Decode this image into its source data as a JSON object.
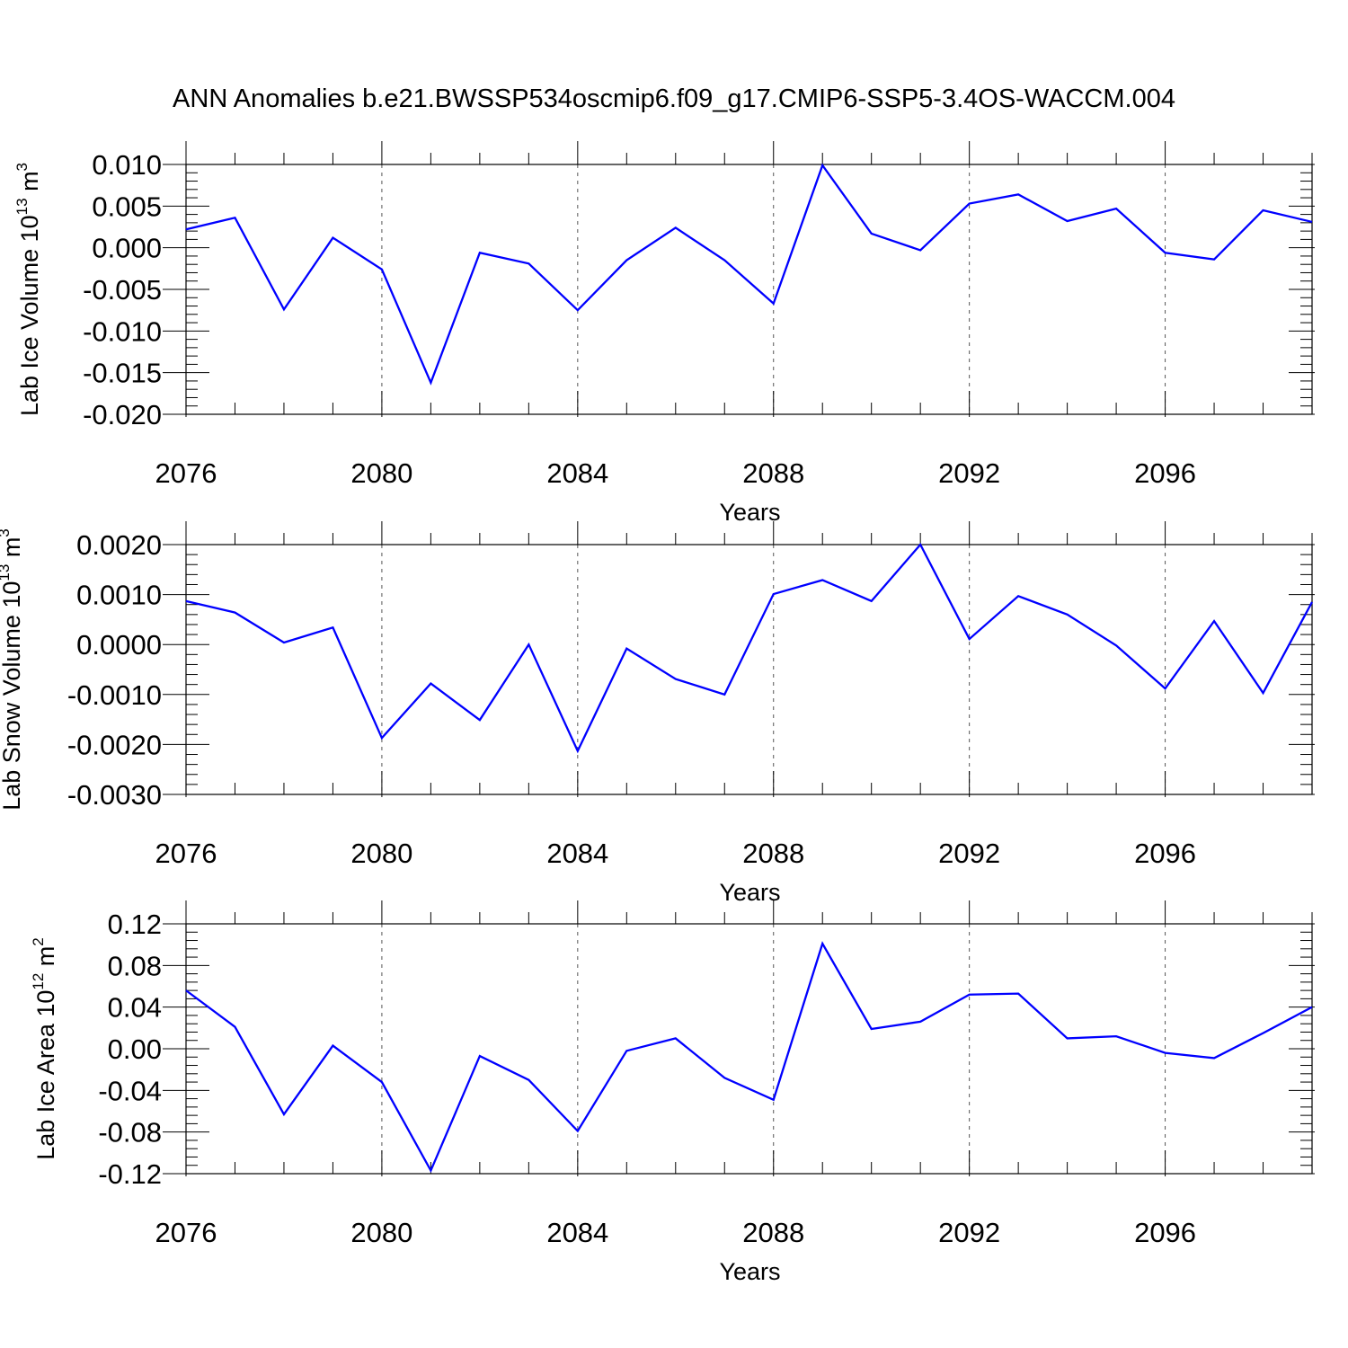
{
  "title": "ANN Anomalies b.e21.BWSSP534oscmip6.f09_g17.CMIP6-SSP5-3.4OS-WACCM.004",
  "chart_data": [
    {
      "type": "line",
      "ylabel": {
        "main": "Lab Ice Volume 10",
        "exp": "13",
        "unit": " m",
        "unit_exp": "3"
      },
      "xlabel": "Years",
      "xlim": [
        2076,
        2099
      ],
      "ylim": [
        -0.02,
        0.01
      ],
      "yticks": [
        0.01,
        0.005,
        0.0,
        -0.005,
        -0.01,
        -0.015,
        -0.02
      ],
      "ytick_labels": [
        "0.010",
        "0.005",
        "0.000",
        "-0.005",
        "-0.010",
        "-0.015",
        "-0.020"
      ],
      "xticks": [
        2076,
        2080,
        2084,
        2088,
        2092,
        2096
      ],
      "xtick_labels": [
        "2076",
        "2080",
        "2084",
        "2088",
        "2092",
        "2096"
      ],
      "color": "#0000ff",
      "x": [
        2076,
        2077,
        2078,
        2079,
        2080,
        2081,
        2082,
        2083,
        2084,
        2085,
        2086,
        2087,
        2088,
        2089,
        2090,
        2091,
        2092,
        2093,
        2094,
        2095,
        2096,
        2097,
        2098,
        2099
      ],
      "y": [
        0.0022,
        0.0036,
        -0.0074,
        0.0012,
        -0.0026,
        -0.0162,
        -0.0006,
        -0.0019,
        -0.0075,
        -0.0015,
        0.0024,
        -0.0015,
        -0.0067,
        0.0099,
        0.0017,
        -0.0003,
        0.0053,
        0.0064,
        0.0032,
        0.0047,
        -0.0006,
        -0.0014,
        0.0045,
        0.0031
      ]
    },
    {
      "type": "line",
      "ylabel": {
        "main": "Lab Snow Volume 10",
        "exp": "13",
        "unit": " m",
        "unit_exp": "3"
      },
      "xlabel": "Years",
      "xlim": [
        2076,
        2099
      ],
      "ylim": [
        -0.003,
        0.002
      ],
      "yticks": [
        0.002,
        0.001,
        0.0,
        -0.001,
        -0.002,
        -0.003
      ],
      "ytick_labels": [
        "0.0020",
        "0.0010",
        "0.0000",
        "-0.0010",
        "-0.0020",
        "-0.0030"
      ],
      "xticks": [
        2076,
        2080,
        2084,
        2088,
        2092,
        2096
      ],
      "xtick_labels": [
        "2076",
        "2080",
        "2084",
        "2088",
        "2092",
        "2096"
      ],
      "color": "#0000ff",
      "x": [
        2076,
        2077,
        2078,
        2079,
        2080,
        2081,
        2082,
        2083,
        2084,
        2085,
        2086,
        2087,
        2088,
        2089,
        2090,
        2091,
        2092,
        2093,
        2094,
        2095,
        2096,
        2097,
        2098,
        2099
      ],
      "y": [
        0.00087,
        0.00064,
        4e-05,
        0.00034,
        -0.00187,
        -0.00078,
        -0.00151,
        0.0,
        -0.00213,
        -8e-05,
        -0.00069,
        -0.001,
        0.00101,
        0.00129,
        0.00087,
        0.002,
        0.00011,
        0.00097,
        0.0006,
        -2e-05,
        -0.00088,
        0.00047,
        -0.00097,
        0.00085
      ]
    },
    {
      "type": "line",
      "ylabel": {
        "main": "Lab Ice Area 10",
        "exp": "12",
        "unit": " m",
        "unit_exp": "2"
      },
      "xlabel": "Years",
      "xlim": [
        2076,
        2099
      ],
      "ylim": [
        -0.12,
        0.12
      ],
      "yticks": [
        0.12,
        0.08,
        0.04,
        0.0,
        -0.04,
        -0.08,
        -0.12
      ],
      "ytick_labels": [
        "0.12",
        "0.08",
        "0.04",
        "0.00",
        "-0.04",
        "-0.08",
        "-0.12"
      ],
      "xticks": [
        2076,
        2080,
        2084,
        2088,
        2092,
        2096
      ],
      "xtick_labels": [
        "2076",
        "2080",
        "2084",
        "2088",
        "2092",
        "2096"
      ],
      "color": "#0000ff",
      "x": [
        2076,
        2077,
        2078,
        2079,
        2080,
        2081,
        2082,
        2083,
        2084,
        2085,
        2086,
        2087,
        2088,
        2089,
        2090,
        2091,
        2092,
        2093,
        2094,
        2095,
        2096,
        2097,
        2098,
        2099
      ],
      "y": [
        0.056,
        0.021,
        -0.063,
        0.003,
        -0.032,
        -0.117,
        -0.007,
        -0.03,
        -0.079,
        -0.002,
        0.01,
        -0.028,
        -0.049,
        0.101,
        0.019,
        0.026,
        0.052,
        0.053,
        0.01,
        0.012,
        -0.004,
        -0.009,
        0.015,
        0.04
      ]
    }
  ]
}
